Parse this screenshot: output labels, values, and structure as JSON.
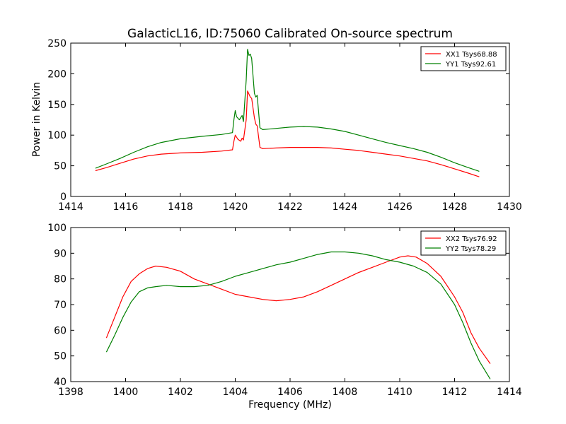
{
  "figure": {
    "title": "GalacticL16, ID:75060 Calibrated On-source spectrum",
    "ylabel": "Power in Kelvin",
    "xlabel": "Frequency (MHz)"
  },
  "colors": {
    "red": "#ff0000",
    "green": "#008000"
  },
  "chart_data": [
    {
      "type": "line",
      "xlim": [
        1414,
        1430
      ],
      "ylim": [
        0,
        250
      ],
      "xticks": [
        1414,
        1416,
        1418,
        1420,
        1422,
        1424,
        1426,
        1428,
        1430
      ],
      "yticks": [
        0,
        50,
        100,
        150,
        200,
        250
      ],
      "grid": false,
      "legend_position": "top-right",
      "series": [
        {
          "name": "XX1 Tsys68.88",
          "color": "#ff0000",
          "x": [
            1414.9,
            1415.3,
            1415.8,
            1416.3,
            1416.8,
            1417.3,
            1418.0,
            1418.8,
            1419.5,
            1419.9,
            1419.95,
            1420.0,
            1420.1,
            1420.2,
            1420.25,
            1420.3,
            1420.4,
            1420.45,
            1420.55,
            1420.6,
            1420.7,
            1420.75,
            1420.8,
            1420.9,
            1421.0,
            1421.5,
            1422.0,
            1422.5,
            1423.0,
            1423.5,
            1424.0,
            1424.5,
            1425.0,
            1425.5,
            1426.0,
            1426.5,
            1427.0,
            1427.5,
            1428.0,
            1428.5,
            1428.9
          ],
          "y": [
            42,
            47,
            54,
            61,
            66,
            69,
            71,
            72,
            74,
            76,
            90,
            100,
            93,
            90,
            95,
            92,
            125,
            172,
            162,
            160,
            128,
            118,
            115,
            80,
            78,
            79,
            80,
            80,
            80,
            79,
            77,
            75,
            72,
            69,
            66,
            62,
            58,
            52,
            45,
            38,
            32
          ]
        },
        {
          "name": "YY1 Tsys92.61",
          "color": "#008000",
          "x": [
            1414.9,
            1415.3,
            1415.8,
            1416.3,
            1416.8,
            1417.3,
            1418.0,
            1418.8,
            1419.5,
            1419.9,
            1419.95,
            1420.0,
            1420.05,
            1420.15,
            1420.25,
            1420.3,
            1420.4,
            1420.45,
            1420.5,
            1420.55,
            1420.6,
            1420.7,
            1420.75,
            1420.8,
            1420.9,
            1421.0,
            1421.5,
            1422.0,
            1422.5,
            1423.0,
            1423.5,
            1424.0,
            1424.5,
            1425.0,
            1425.5,
            1426.0,
            1426.5,
            1427.0,
            1427.5,
            1428.0,
            1428.5,
            1428.9
          ],
          "y": [
            46,
            53,
            62,
            72,
            81,
            88,
            94,
            98,
            101,
            104,
            125,
            140,
            130,
            125,
            132,
            122,
            190,
            240,
            230,
            232,
            225,
            168,
            162,
            165,
            112,
            109,
            111,
            113,
            114,
            113,
            110,
            106,
            100,
            94,
            88,
            83,
            78,
            72,
            64,
            55,
            47,
            41
          ]
        }
      ]
    },
    {
      "type": "line",
      "xlim": [
        1398,
        1414
      ],
      "ylim": [
        40,
        100
      ],
      "xticks": [
        1398,
        1400,
        1402,
        1404,
        1406,
        1408,
        1410,
        1412,
        1414
      ],
      "yticks": [
        40,
        50,
        60,
        70,
        80,
        90,
        100
      ],
      "grid": false,
      "legend_position": "top-right",
      "series": [
        {
          "name": "XX2 Tsys76.92",
          "color": "#ff0000",
          "x": [
            1399.3,
            1399.6,
            1399.9,
            1400.2,
            1400.5,
            1400.8,
            1401.1,
            1401.5,
            1402.0,
            1402.5,
            1403.0,
            1403.5,
            1404.0,
            1404.5,
            1405.0,
            1405.5,
            1406.0,
            1406.5,
            1407.0,
            1407.5,
            1408.0,
            1408.5,
            1409.0,
            1409.5,
            1410.0,
            1410.3,
            1410.6,
            1411.0,
            1411.5,
            1412.0,
            1412.3,
            1412.6,
            1412.9,
            1413.3
          ],
          "y": [
            57,
            65,
            73,
            79,
            82,
            84,
            85,
            84.5,
            83,
            80,
            78,
            76,
            74,
            73,
            72,
            71.5,
            72,
            73,
            75,
            77.5,
            80,
            82.5,
            84.5,
            86.5,
            88.5,
            89,
            88.5,
            86,
            81,
            73,
            67,
            59,
            53,
            47
          ]
        },
        {
          "name": "YY2 Tsys78.29",
          "color": "#008000",
          "x": [
            1399.3,
            1399.6,
            1399.9,
            1400.2,
            1400.5,
            1400.8,
            1401.1,
            1401.5,
            1402.0,
            1402.5,
            1403.0,
            1403.5,
            1404.0,
            1404.5,
            1405.0,
            1405.5,
            1406.0,
            1406.5,
            1407.0,
            1407.5,
            1408.0,
            1408.5,
            1409.0,
            1409.5,
            1410.0,
            1410.5,
            1411.0,
            1411.5,
            1412.0,
            1412.3,
            1412.6,
            1412.9,
            1413.3
          ],
          "y": [
            51.5,
            58,
            65,
            71,
            75,
            76.5,
            77,
            77.5,
            77,
            77,
            77.5,
            79,
            81,
            82.5,
            84,
            85.5,
            86.5,
            88,
            89.5,
            90.5,
            90.5,
            90,
            89,
            87.5,
            86.5,
            85,
            82.5,
            78,
            70,
            63,
            55,
            48,
            41
          ]
        }
      ]
    }
  ]
}
